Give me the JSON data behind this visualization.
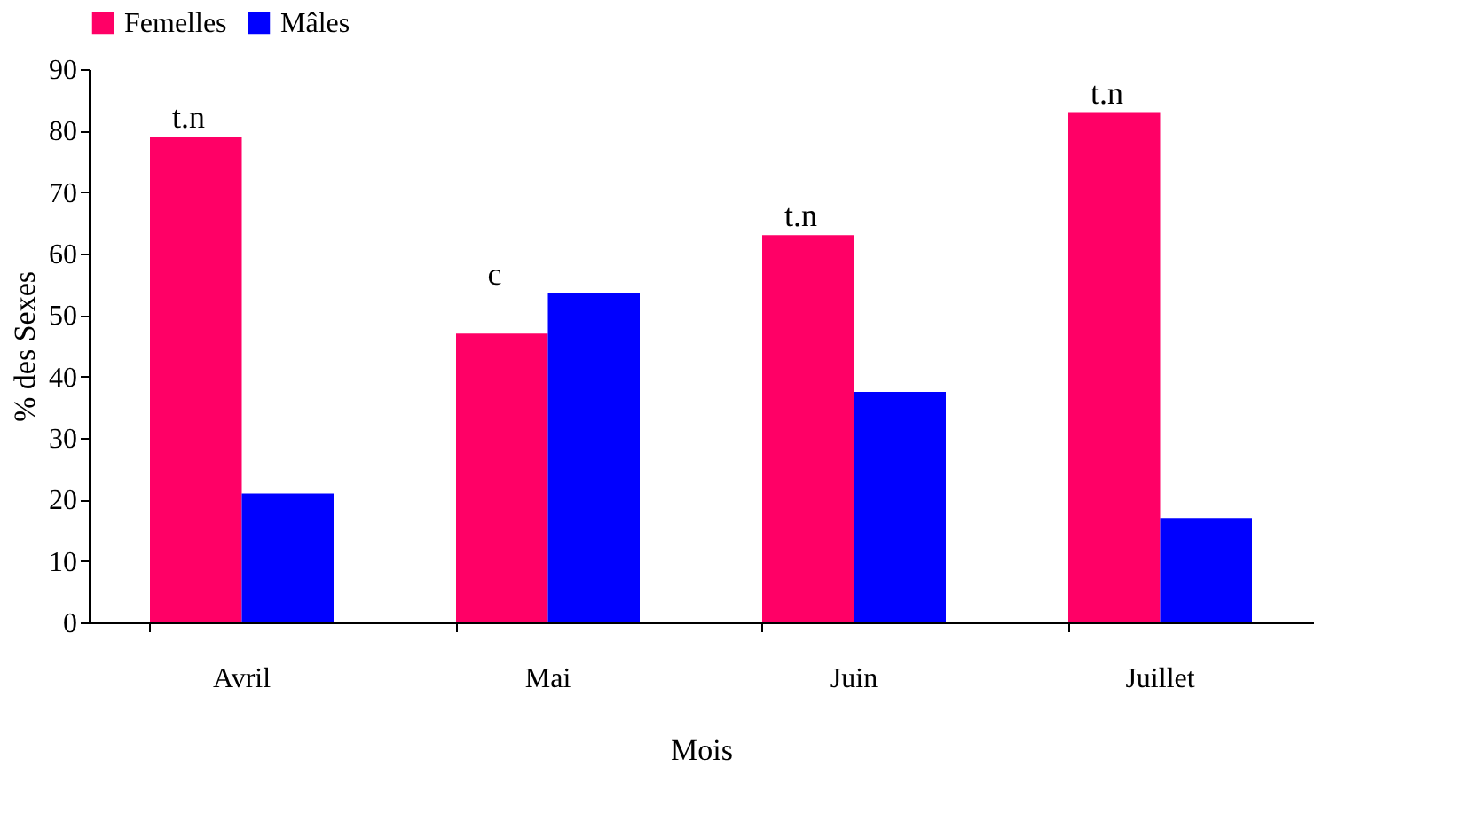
{
  "chart_data": {
    "type": "bar",
    "xlabel": "Mois",
    "ylabel": "% des Sexes",
    "categories": [
      "Avril",
      "Mai",
      "Juin",
      "Juillet"
    ],
    "series": [
      {
        "name": "Femelles",
        "color": "#ff0066",
        "values": [
          79,
          47,
          63,
          83
        ]
      },
      {
        "name": "Mâles",
        "color": "#0000ff",
        "values": [
          21,
          53.5,
          37.5,
          17
        ]
      }
    ],
    "ylim": [
      0,
      90
    ],
    "yticks": [
      0,
      10,
      20,
      30,
      40,
      50,
      60,
      70,
      80,
      90
    ],
    "grid": false,
    "legend": "top",
    "annotations": [
      {
        "text": "t.n",
        "x": "Avril",
        "y": 79
      },
      {
        "text": "c",
        "x": "Mai",
        "y": 53.5
      },
      {
        "text": "t.n",
        "x": "Juin",
        "y": 63
      },
      {
        "text": "t.n",
        "x": "Juillet",
        "y": 83
      }
    ]
  }
}
